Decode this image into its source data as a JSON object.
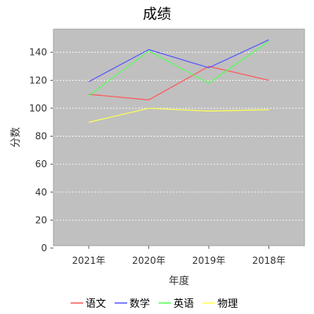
{
  "chart_data": {
    "type": "line",
    "title": "成绩",
    "xlabel": "年度",
    "ylabel": "分数",
    "categories": [
      "2021年",
      "2020年",
      "2019年",
      "2018年"
    ],
    "ylim": [
      0,
      155
    ],
    "yticks": [
      0,
      20,
      40,
      60,
      80,
      100,
      120,
      140
    ],
    "grid": true,
    "plot_background": "#c0c0c0",
    "legend_position": "bottom",
    "series": [
      {
        "name": "语文",
        "color": "#ff5555",
        "values": [
          110,
          106,
          130,
          120
        ]
      },
      {
        "name": "数学",
        "color": "#5555ff",
        "values": [
          119,
          142,
          129,
          149
        ]
      },
      {
        "name": "英语",
        "color": "#55ff55",
        "values": [
          109,
          141,
          118,
          148
        ]
      },
      {
        "name": "物理",
        "color": "#ffff55",
        "values": [
          90,
          100,
          98,
          99
        ]
      }
    ]
  }
}
